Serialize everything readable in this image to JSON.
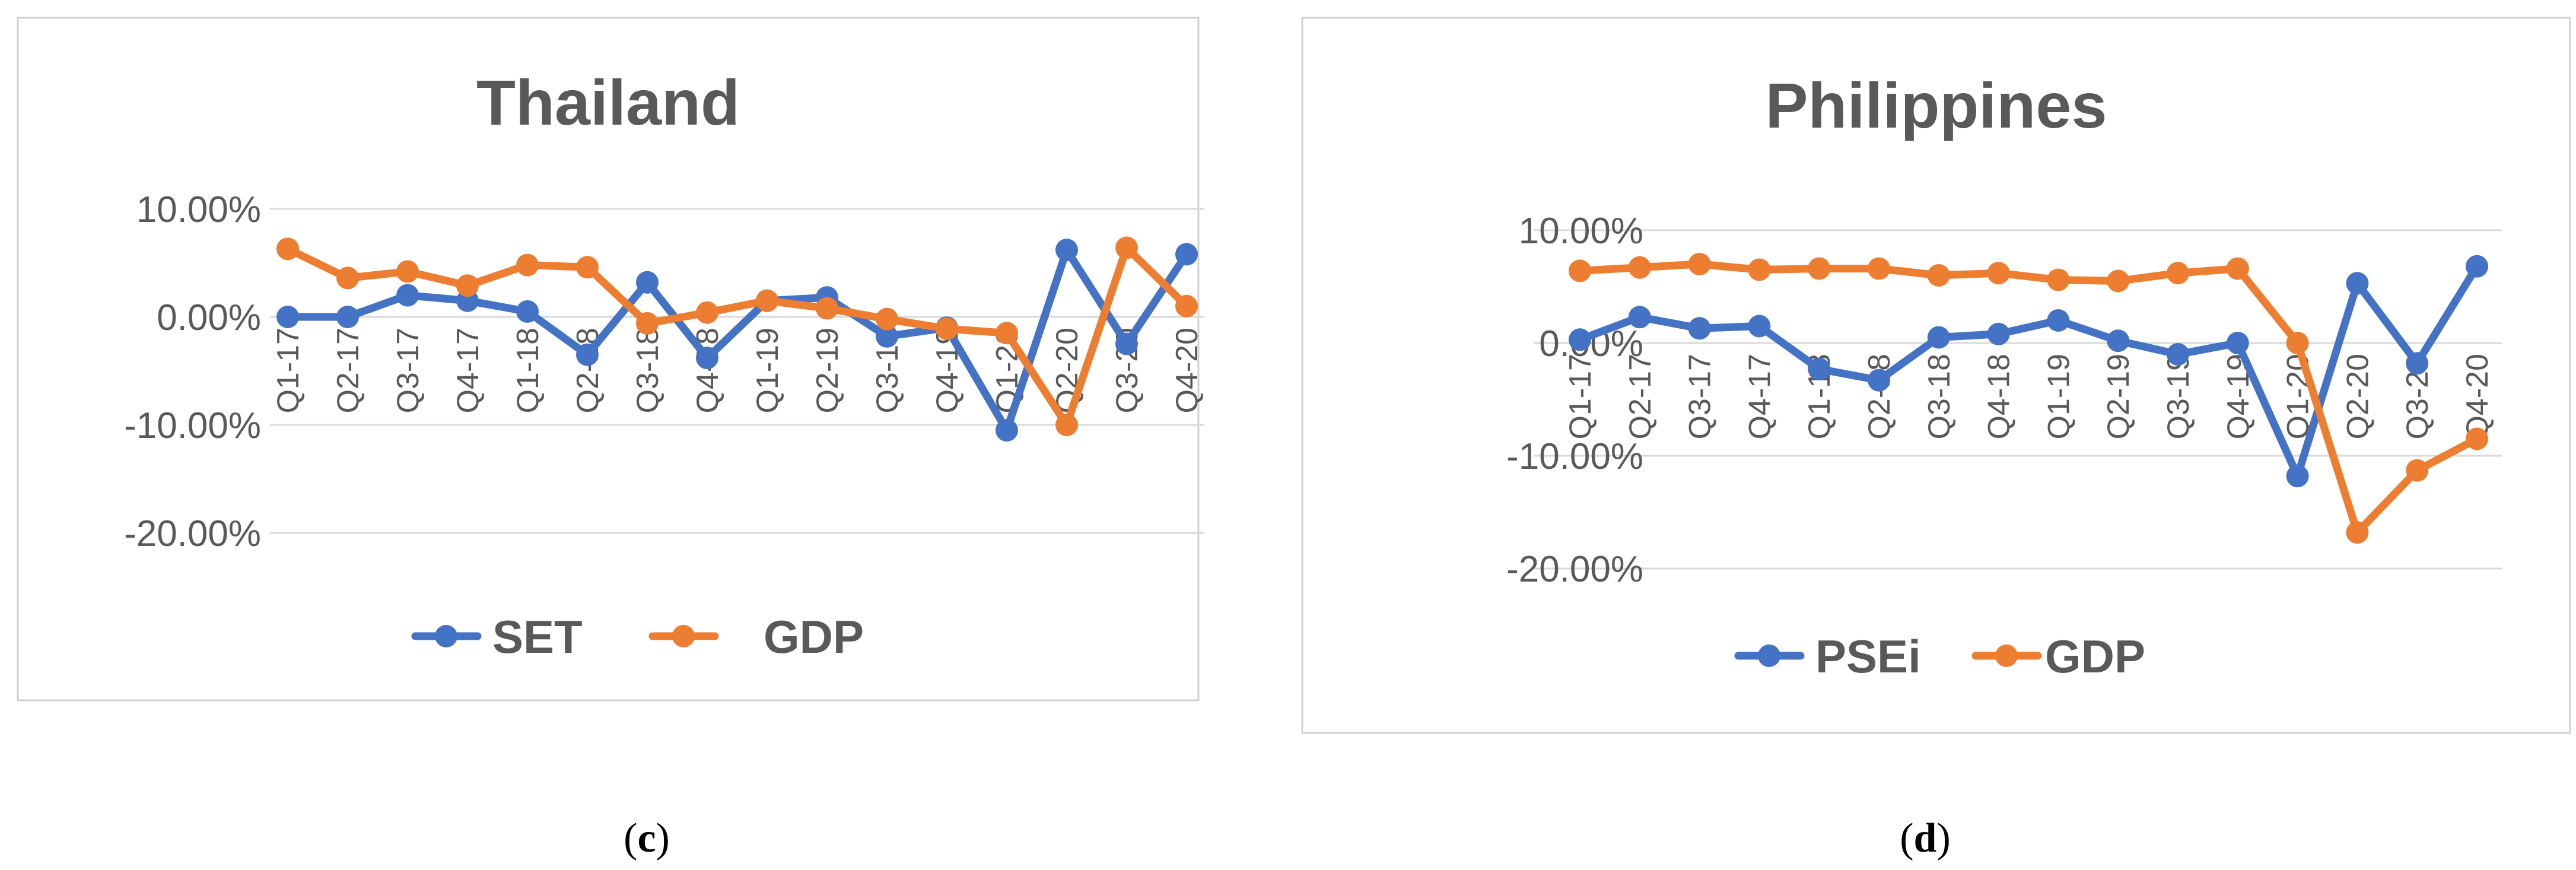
{
  "chart_data": [
    {
      "type": "line",
      "title": "Thailand",
      "caption_prefix": "(",
      "caption_letter": "c",
      "caption_suffix": ")",
      "categories": [
        "Q1-17",
        "Q2-17",
        "Q3-17",
        "Q4-17",
        "Q1-18",
        "Q2-18",
        "Q3-18",
        "Q4-18",
        "Q1-19",
        "Q2-19",
        "Q3-19",
        "Q4-19",
        "Q1-20",
        "Q2-20",
        "Q3-20",
        "Q4-20"
      ],
      "y_ticks": [
        10,
        0,
        -10,
        -20
      ],
      "y_tick_labels": [
        "10.00%",
        "0.00%",
        "-10.00%",
        "-20.00%"
      ],
      "ylim": [
        -20,
        10
      ],
      "grid": true,
      "legend_position": "bottom",
      "series": [
        {
          "name": "SET",
          "color": "#4472C4",
          "values": [
            0.0,
            0.0,
            2.0,
            1.5,
            0.5,
            -3.5,
            3.2,
            -3.8,
            1.5,
            1.8,
            -1.8,
            -1.0,
            -10.5,
            6.2,
            -2.5,
            5.8
          ]
        },
        {
          "name": "GDP",
          "color": "#ED7D31",
          "values": [
            6.3,
            3.6,
            4.2,
            2.9,
            4.8,
            4.6,
            -0.6,
            0.4,
            1.5,
            0.8,
            -0.2,
            -1.1,
            -1.5,
            -10.0,
            6.4,
            1.0
          ]
        }
      ]
    },
    {
      "type": "line",
      "title": "Philippines",
      "caption_prefix": "(",
      "caption_letter": "d",
      "caption_suffix": ")",
      "categories": [
        "Q1-17",
        "Q2-17",
        "Q3-17",
        "Q4-17",
        "Q1-18",
        "Q2-18",
        "Q3-18",
        "Q4-18",
        "Q1-19",
        "Q2-19",
        "Q3-19",
        "Q4-19",
        "Q1-20",
        "Q2-20",
        "Q3-20",
        "Q4-20"
      ],
      "y_ticks": [
        10,
        0,
        -10,
        -20
      ],
      "y_tick_labels": [
        "10.00%",
        "0.00%",
        "-10.00%",
        "-20.00%"
      ],
      "ylim": [
        -20,
        10
      ],
      "grid": true,
      "legend_position": "bottom",
      "series": [
        {
          "name": "PSEi",
          "color": "#4472C4",
          "values": [
            0.3,
            2.3,
            1.3,
            1.5,
            -2.3,
            -3.3,
            0.5,
            0.8,
            2.0,
            0.2,
            -1.0,
            0.0,
            -11.8,
            5.3,
            -1.8,
            6.8
          ]
        },
        {
          "name": "GDP",
          "color": "#ED7D31",
          "values": [
            6.4,
            6.7,
            7.0,
            6.5,
            6.6,
            6.6,
            6.0,
            6.2,
            5.6,
            5.5,
            6.2,
            6.6,
            0.0,
            -16.8,
            -11.3,
            -8.5
          ]
        }
      ]
    }
  ]
}
